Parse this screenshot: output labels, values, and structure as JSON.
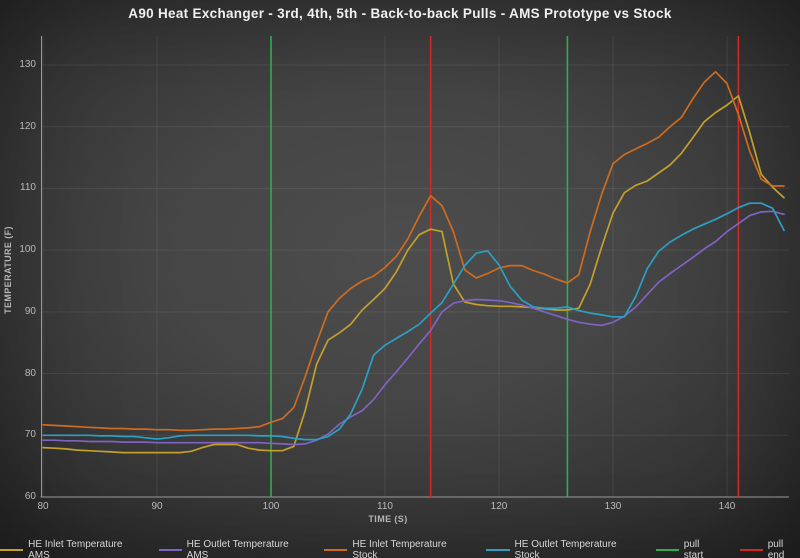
{
  "chart_data": {
    "type": "line",
    "title": "A90 Heat Exchanger - 3rd, 4th, 5th - Back-to-back Pulls - AMS Prototype vs Stock",
    "xlabel": "TIME (S)",
    "ylabel": "TEMPERATURE (F)",
    "xlim": [
      80,
      145.3
    ],
    "ylim": [
      60,
      134.9
    ],
    "xticks": [
      80,
      90,
      100,
      110,
      120,
      130,
      140
    ],
    "yticks": [
      60,
      70,
      80,
      90,
      100,
      110,
      120,
      130
    ],
    "grid": true,
    "legend_position": "bottom",
    "background": "dark-gray-vignette",
    "x": [
      80,
      81,
      82,
      83,
      84,
      85,
      86,
      87,
      88,
      89,
      90,
      91,
      92,
      93,
      94,
      95,
      96,
      97,
      98,
      99,
      100,
      101,
      102,
      103,
      104,
      105,
      106,
      107,
      108,
      109,
      110,
      111,
      112,
      113,
      114,
      115,
      116,
      117,
      118,
      119,
      120,
      121,
      122,
      123,
      124,
      125,
      126,
      127,
      128,
      129,
      130,
      131,
      132,
      133,
      134,
      135,
      136,
      137,
      138,
      139,
      140,
      141,
      142,
      143,
      144,
      145
    ],
    "series": [
      {
        "name": "HE Inlet Temperature AMS",
        "color": "#c2a02a",
        "values": [
          68.0,
          67.9,
          67.8,
          67.6,
          67.5,
          67.4,
          67.3,
          67.2,
          67.2,
          67.2,
          67.2,
          67.2,
          67.2,
          67.4,
          68.0,
          68.5,
          68.5,
          68.5,
          67.9,
          67.6,
          67.5,
          67.5,
          68.2,
          74.0,
          81.5,
          85.4,
          86.6,
          88.0,
          90.3,
          92.0,
          93.8,
          96.5,
          100.0,
          102.5,
          103.4,
          103.0,
          94.5,
          91.6,
          91.2,
          91.0,
          90.9,
          90.9,
          90.8,
          90.7,
          90.5,
          90.3,
          90.3,
          90.6,
          94.5,
          100.5,
          106.0,
          109.3,
          110.5,
          111.2,
          112.5,
          113.8,
          115.7,
          118.2,
          120.8,
          122.3,
          123.5,
          125.0,
          119.0,
          112.3,
          110.2,
          108.5
        ]
      },
      {
        "name": "HE Outlet Temperature AMS",
        "color": "#8062c2",
        "values": [
          69.2,
          69.2,
          69.1,
          69.1,
          69.0,
          69.0,
          69.0,
          68.9,
          68.9,
          68.9,
          68.8,
          68.8,
          68.8,
          68.8,
          68.8,
          68.8,
          68.8,
          68.8,
          68.8,
          68.8,
          68.7,
          68.6,
          68.5,
          68.6,
          69.2,
          70.2,
          71.8,
          73.0,
          74.0,
          75.8,
          78.2,
          80.3,
          82.5,
          84.8,
          87.0,
          90.0,
          91.4,
          91.8,
          92.0,
          91.9,
          91.8,
          91.5,
          91.1,
          90.6,
          90.0,
          89.4,
          88.8,
          88.3,
          88.0,
          87.8,
          88.3,
          89.3,
          90.8,
          92.8,
          94.8,
          96.2,
          97.5,
          98.8,
          100.2,
          101.4,
          103.0,
          104.3,
          105.6,
          106.2,
          106.3,
          105.8
        ]
      },
      {
        "name": "HE Inlet Temperature Stock",
        "color": "#cf6b1f",
        "values": [
          71.7,
          71.6,
          71.5,
          71.4,
          71.3,
          71.2,
          71.1,
          71.1,
          71.0,
          71.0,
          70.9,
          70.9,
          70.8,
          70.8,
          70.9,
          71.0,
          71.0,
          71.1,
          71.2,
          71.4,
          72.1,
          72.7,
          74.5,
          79.5,
          85.0,
          90.0,
          92.2,
          93.8,
          95.0,
          95.8,
          97.2,
          99.0,
          101.8,
          105.5,
          108.8,
          107.2,
          103.0,
          96.8,
          95.5,
          96.2,
          97.1,
          97.5,
          97.5,
          96.7,
          96.1,
          95.3,
          94.7,
          96.0,
          103.0,
          109.0,
          114.0,
          115.5,
          116.4,
          117.3,
          118.3,
          120.0,
          121.5,
          124.5,
          127.2,
          128.9,
          127.0,
          122.0,
          116.0,
          111.5,
          110.4,
          110.4
        ]
      },
      {
        "name": "HE Outlet Temperature Stock",
        "color": "#2b9fc4",
        "values": [
          70.0,
          70.0,
          70.0,
          70.0,
          70.0,
          69.9,
          69.9,
          69.8,
          69.8,
          69.6,
          69.4,
          69.6,
          69.9,
          70.0,
          70.0,
          70.0,
          70.0,
          70.0,
          70.0,
          69.9,
          69.9,
          69.8,
          69.5,
          69.3,
          69.3,
          69.8,
          71.0,
          73.5,
          77.5,
          83.0,
          84.6,
          85.7,
          86.8,
          88.0,
          89.8,
          91.5,
          94.5,
          97.5,
          99.5,
          99.9,
          97.6,
          94.1,
          91.9,
          90.8,
          90.6,
          90.6,
          90.8,
          90.2,
          89.8,
          89.5,
          89.2,
          89.2,
          92.5,
          97.0,
          99.8,
          101.3,
          102.4,
          103.4,
          104.2,
          105.0,
          105.9,
          106.9,
          107.6,
          107.6,
          106.8,
          103.2
        ]
      }
    ],
    "vlines": [
      {
        "name": "pull start",
        "color": "#2fad53",
        "x": [
          100,
          126
        ]
      },
      {
        "name": "pull end",
        "color": "#d02828",
        "x": [
          114,
          141
        ]
      }
    ]
  },
  "style_colors": {
    "grid": "rgba(255,255,255,0.08)",
    "axis": "#9a9a9a",
    "tick_text": "#b9b9b9",
    "title_text": "#f0f0f0",
    "legend_text": "#d6d6d6"
  }
}
